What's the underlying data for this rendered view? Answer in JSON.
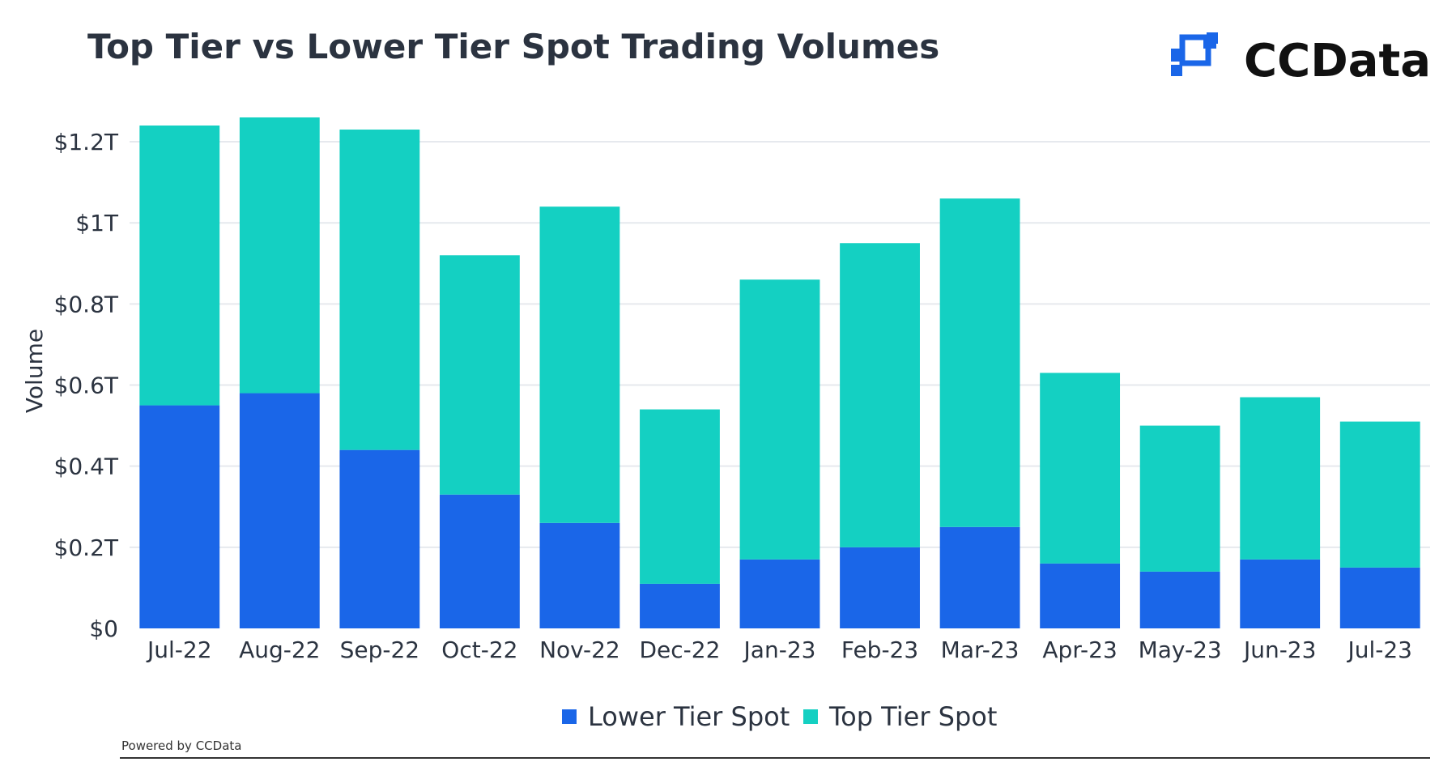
{
  "header": {
    "title": "Top Tier vs Lower Tier Spot Trading Volumes",
    "brand": "CCData",
    "brand_icon": "ccdata-logo-icon"
  },
  "footer": {
    "powered_by": "Powered by CCData"
  },
  "colors": {
    "lower_tier": "#1a66e8",
    "top_tier": "#14d0c2",
    "grid": "#e6e9ee",
    "text": "#2b3340"
  },
  "chart_data": {
    "type": "bar",
    "stacked": true,
    "title": "Top Tier vs Lower Tier Spot Trading Volumes",
    "xlabel": "",
    "ylabel": "Volume",
    "ylim": [
      0,
      1.2
    ],
    "y_unit": "trillion USD",
    "yticks": [
      0,
      0.2,
      0.4,
      0.6,
      0.8,
      1.0,
      1.2
    ],
    "ytick_labels": [
      "$0",
      "$0.2T",
      "$0.4T",
      "$0.6T",
      "$0.8T",
      "$1T",
      "$1.2T"
    ],
    "grid": true,
    "legend_position": "bottom-center",
    "categories": [
      "Jul-22",
      "Aug-22",
      "Sep-22",
      "Oct-22",
      "Nov-22",
      "Dec-22",
      "Jan-23",
      "Feb-23",
      "Mar-23",
      "Apr-23",
      "May-23",
      "Jun-23",
      "Jul-23"
    ],
    "series": [
      {
        "name": "Lower Tier Spot",
        "color": "#1a66e8",
        "values": [
          0.55,
          0.58,
          0.44,
          0.33,
          0.26,
          0.11,
          0.17,
          0.2,
          0.25,
          0.16,
          0.14,
          0.17,
          0.15
        ]
      },
      {
        "name": "Top Tier Spot",
        "color": "#14d0c2",
        "values": [
          0.69,
          0.68,
          0.79,
          0.59,
          0.78,
          0.43,
          0.69,
          0.75,
          0.81,
          0.47,
          0.36,
          0.4,
          0.36
        ]
      }
    ]
  }
}
